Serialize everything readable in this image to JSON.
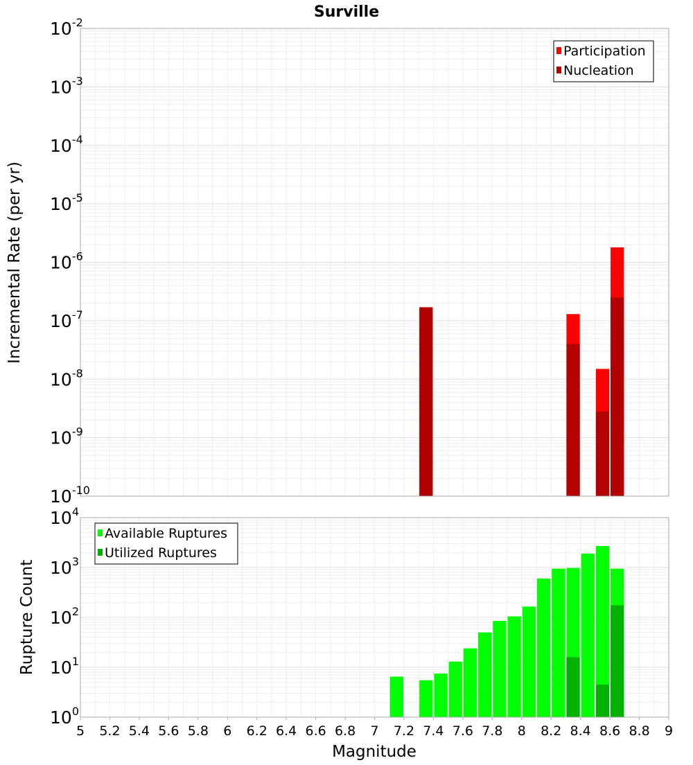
{
  "chart_data": {
    "title": "Surville",
    "xlabel": "Magnitude",
    "xlim": [
      5,
      9
    ],
    "xticks": [
      "5",
      "5.2",
      "5.4",
      "5.6",
      "5.8",
      "6",
      "6.2",
      "6.4",
      "6.6",
      "6.8",
      "7",
      "7.2",
      "7.4",
      "7.6",
      "7.8",
      "8",
      "8.2",
      "8.4",
      "8.6",
      "8.8",
      "9"
    ],
    "bin_width": 0.1,
    "colors": {
      "participation": "#ff0000",
      "nucleation": "#b30000",
      "available": "#00ff00",
      "utilized": "#00b300",
      "grid_minor": "#eeeeee",
      "grid_major": "#dcdcdc"
    },
    "panels": [
      {
        "type": "bar",
        "ylabel": "Incremental Rate (per yr)",
        "yscale": "log",
        "ylim_exp": [
          -10,
          -2
        ],
        "grid": true,
        "legend_position": "top-right",
        "series": [
          {
            "name": "Participation",
            "x": [
              7.35,
              8.35,
              8.55,
              8.65
            ],
            "values": [
              1.7e-07,
              1.3e-07,
              1.5e-08,
              1.8e-06
            ]
          },
          {
            "name": "Nucleation",
            "x": [
              7.35,
              8.35,
              8.55,
              8.65
            ],
            "values": [
              1.7e-07,
              4e-08,
              2.8e-09,
              2.5e-07
            ]
          }
        ]
      },
      {
        "type": "bar",
        "ylabel": "Rupture Count",
        "yscale": "log",
        "ylim_exp": [
          0,
          4
        ],
        "grid": true,
        "legend_position": "top-left",
        "series": [
          {
            "name": "Available Ruptures",
            "x": [
              7.15,
              7.35,
              7.45,
              7.55,
              7.65,
              7.75,
              7.85,
              7.95,
              8.05,
              8.15,
              8.25,
              8.35,
              8.45,
              8.55,
              8.65
            ],
            "values": [
              6.5,
              5.5,
              7.5,
              13,
              24,
              50,
              85,
              105,
              165,
              600,
              950,
              980,
              1900,
              2700,
              950
            ]
          },
          {
            "name": "Utilized Ruptures",
            "x": [
              7.35,
              8.25,
              8.35,
              8.45,
              8.55,
              8.65
            ],
            "values": [
              1,
              1,
              16,
              1,
              4.5,
              175
            ]
          }
        ]
      }
    ]
  }
}
